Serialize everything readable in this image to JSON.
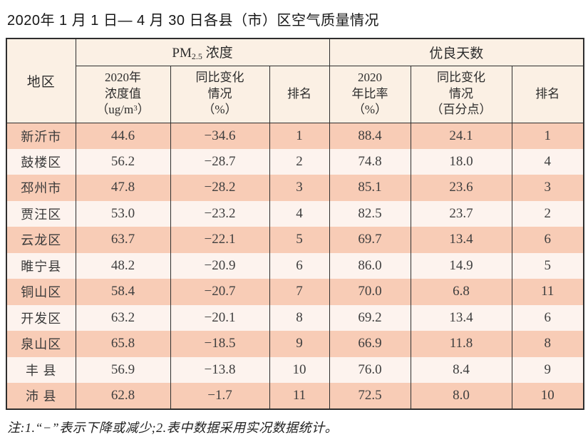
{
  "page": {
    "title": "2020年 1 月 1 日— 4 月 30 日各县（市）区空气质量情况",
    "note": "注:1.“−”表示下降或减少;2.表中数据采用实况数据统计。"
  },
  "colors": {
    "row_odd": "#f8ccb6",
    "row_even": "#fdf3ee",
    "header_bg": "#fbf0e4",
    "grid_border": "#2e2e2e",
    "data_text": "#3e3e3e"
  },
  "table": {
    "region_header": "地区",
    "pm_group": {
      "prefix": "PM",
      "sub": "2.5",
      "suffix": " 浓度"
    },
    "good_group": "优良天数",
    "sub_headers": {
      "pm_value": {
        "line1": "2020年",
        "line2": "浓度值",
        "unit_pre": "（ug/m",
        "unit_sup": "3",
        "unit_post": "）"
      },
      "pm_change": {
        "line1": "同比变化",
        "line2": "情况",
        "line3": "（%）"
      },
      "pm_rank": "排名",
      "good_rate": {
        "line1": "2020",
        "line2": "年比率",
        "line3": "（%）"
      },
      "good_change": {
        "line1": "同比变化",
        "line2": "情况",
        "line3": "（百分点）"
      },
      "good_rank": "排名"
    },
    "rows": [
      {
        "region": "新沂市",
        "pm_value": "44.6",
        "pm_change": "−34.6",
        "pm_rank": "1",
        "good_rate": "88.4",
        "good_change": "24.1",
        "good_rank": "1"
      },
      {
        "region": "鼓楼区",
        "pm_value": "56.2",
        "pm_change": "−28.7",
        "pm_rank": "2",
        "good_rate": "74.8",
        "good_change": "18.0",
        "good_rank": "4"
      },
      {
        "region": "邳州市",
        "pm_value": "47.8",
        "pm_change": "−28.2",
        "pm_rank": "3",
        "good_rate": "85.1",
        "good_change": "23.6",
        "good_rank": "3"
      },
      {
        "region": "贾汪区",
        "pm_value": "53.0",
        "pm_change": "−23.2",
        "pm_rank": "4",
        "good_rate": "82.5",
        "good_change": "23.7",
        "good_rank": "2"
      },
      {
        "region": "云龙区",
        "pm_value": "63.7",
        "pm_change": "−22.1",
        "pm_rank": "5",
        "good_rate": "69.7",
        "good_change": "13.4",
        "good_rank": "6"
      },
      {
        "region": "睢宁县",
        "pm_value": "48.2",
        "pm_change": "−20.9",
        "pm_rank": "6",
        "good_rate": "86.0",
        "good_change": "14.9",
        "good_rank": "5"
      },
      {
        "region": "铜山区",
        "pm_value": "58.4",
        "pm_change": "−20.7",
        "pm_rank": "7",
        "good_rate": "70.0",
        "good_change": "6.8",
        "good_rank": "11"
      },
      {
        "region": "开发区",
        "pm_value": "63.2",
        "pm_change": "−20.1",
        "pm_rank": "8",
        "good_rate": "69.2",
        "good_change": "13.4",
        "good_rank": "6"
      },
      {
        "region": "泉山区",
        "pm_value": "65.8",
        "pm_change": "−18.5",
        "pm_rank": "9",
        "good_rate": "66.9",
        "good_change": "11.8",
        "good_rank": "8"
      },
      {
        "region": "丰 县",
        "pm_value": "56.9",
        "pm_change": "−13.8",
        "pm_rank": "10",
        "good_rate": "76.0",
        "good_change": "8.4",
        "good_rank": "9"
      },
      {
        "region": "沛 县",
        "pm_value": "62.8",
        "pm_change": "−1.7",
        "pm_rank": "11",
        "good_rate": "72.5",
        "good_change": "8.0",
        "good_rank": "10"
      }
    ]
  },
  "chart_data": {
    "type": "table",
    "title": "2020年1月1日—4月30日各县（市）区空气质量情况",
    "column_groups": [
      "地区",
      "PM2.5浓度",
      "优良天数"
    ],
    "columns": [
      "地区",
      "PM2.5浓度 2020年浓度值（ug/m3）",
      "PM2.5浓度 同比变化情况（%）",
      "PM2.5浓度 排名",
      "优良天数 2020年比率（%）",
      "优良天数 同比变化情况（百分点）",
      "优良天数 排名"
    ],
    "rows": [
      [
        "新沂市",
        44.6,
        -34.6,
        1,
        88.4,
        24.1,
        1
      ],
      [
        "鼓楼区",
        56.2,
        -28.7,
        2,
        74.8,
        18.0,
        4
      ],
      [
        "邳州市",
        47.8,
        -28.2,
        3,
        85.1,
        23.6,
        3
      ],
      [
        "贾汪区",
        53.0,
        -23.2,
        4,
        82.5,
        23.7,
        2
      ],
      [
        "云龙区",
        63.7,
        -22.1,
        5,
        69.7,
        13.4,
        6
      ],
      [
        "睢宁县",
        48.2,
        -20.9,
        6,
        86.0,
        14.9,
        5
      ],
      [
        "铜山区",
        58.4,
        -20.7,
        7,
        70.0,
        6.8,
        11
      ],
      [
        "开发区",
        63.2,
        -20.1,
        8,
        69.2,
        13.4,
        6
      ],
      [
        "泉山区",
        65.8,
        -18.5,
        9,
        66.9,
        11.8,
        8
      ],
      [
        "丰县",
        56.9,
        -13.8,
        10,
        76.0,
        8.4,
        9
      ],
      [
        "沛县",
        62.8,
        -1.7,
        11,
        72.5,
        8.0,
        10
      ]
    ],
    "note": "注:1.“−”表示下降或减少;2.表中数据采用实况数据统计。"
  }
}
